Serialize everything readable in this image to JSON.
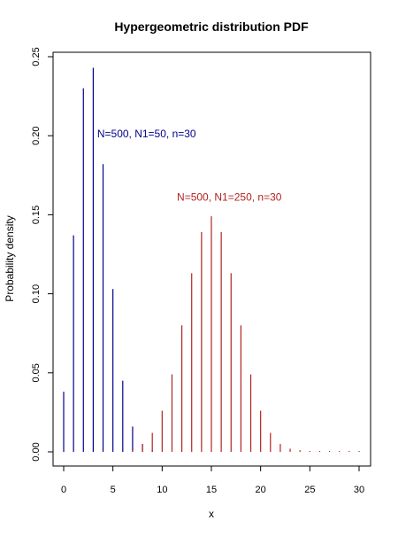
{
  "chart_data": {
    "type": "bar",
    "title": "Hypergeometric distribution PDF",
    "xlabel": "x",
    "ylabel": "Probability density",
    "xlim": [
      0,
      30
    ],
    "ylim": [
      0,
      0.25
    ],
    "x_ticks": [
      0,
      5,
      10,
      15,
      20,
      25,
      30
    ],
    "x_tick_labels": [
      "0",
      "5",
      "10",
      "15",
      "20",
      "25",
      "30"
    ],
    "y_ticks": [
      0.0,
      0.05,
      0.1,
      0.15,
      0.2,
      0.25
    ],
    "y_tick_labels": [
      "0.00",
      "0.05",
      "0.10",
      "0.15",
      "0.20",
      "0.25"
    ],
    "grid": false,
    "series": [
      {
        "name": "N=500, N1=50, n=30",
        "color": "#00008B",
        "label_anchor": {
          "x": 3.4,
          "y": 0.199
        },
        "x": [
          0,
          1,
          2,
          3,
          4,
          5,
          6,
          7,
          8,
          9,
          10,
          11,
          12,
          13,
          14,
          15,
          16,
          17,
          18,
          19,
          20,
          21,
          22,
          23,
          24,
          25,
          26,
          27,
          28,
          29,
          30
        ],
        "values": [
          0.038,
          0.137,
          0.23,
          0.243,
          0.182,
          0.103,
          0.045,
          0.016,
          0.005,
          0.001,
          0,
          0,
          0,
          0,
          0,
          0,
          0,
          0,
          0,
          0,
          0,
          0,
          0,
          0,
          0,
          0,
          0,
          0,
          0,
          0,
          0
        ]
      },
      {
        "name": "N=500, N1=250, n=30",
        "color": "#B22222",
        "label_anchor": {
          "x": 11.5,
          "y": 0.159
        },
        "x": [
          0,
          1,
          2,
          3,
          4,
          5,
          6,
          7,
          8,
          9,
          10,
          11,
          12,
          13,
          14,
          15,
          16,
          17,
          18,
          19,
          20,
          21,
          22,
          23,
          24,
          25,
          26,
          27,
          28,
          29,
          30
        ],
        "values": [
          0,
          0,
          0,
          0,
          0,
          0,
          0,
          0.001,
          0.005,
          0.012,
          0.026,
          0.049,
          0.08,
          0.113,
          0.139,
          0.149,
          0.139,
          0.113,
          0.08,
          0.049,
          0.026,
          0.012,
          0.005,
          0.002,
          0.001,
          0.0005,
          0.0002,
          0.0001,
          0.0001,
          0.0001,
          0.0001
        ]
      }
    ]
  }
}
